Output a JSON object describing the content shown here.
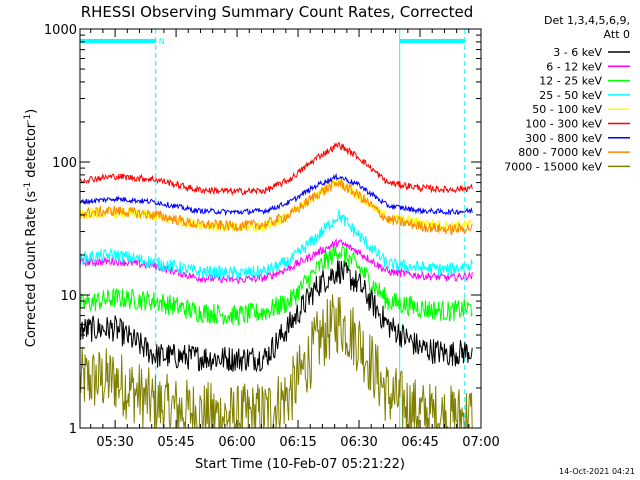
{
  "chart_data": {
    "type": "line",
    "title": "RHESSI Observing Summary Count Rates, Corrected",
    "xlabel": "Start Time (10-Feb-07 05:21:22)",
    "ylabel": "Corrected Count Rate (s",
    "ylabel_sup1": "-1",
    "ylabel_mid": " detector",
    "ylabel_sup2": "-1",
    "ylabel_end": ")",
    "yscale": "log",
    "ylim": [
      1,
      1000
    ],
    "xlim": [
      "05:21:22",
      "07:00"
    ],
    "x_ticks": [
      "05:30",
      "05:45",
      "06:00",
      "06:15",
      "06:30",
      "06:45",
      "07:00"
    ],
    "y_ticks": [
      "1",
      "10",
      "100",
      "1000"
    ],
    "legend_header": [
      "Det 1,3,4,5,6,9,",
      "Att 0"
    ],
    "legend_position": "right",
    "timestamp": "14-Oct-2021 04:21",
    "night_marker": "N",
    "night_intervals": [
      [
        "05:21:22",
        "05:40"
      ],
      [
        "06:40",
        "06:56"
      ]
    ],
    "series": [
      {
        "name": "3 - 6 keV",
        "color": "#000000",
        "values": [
          5.5,
          5.6,
          3.5,
          3.4,
          3.3,
          3.4,
          6,
          12,
          15.5,
          12,
          6,
          4,
          3.6,
          3.8
        ]
      },
      {
        "name": "6 - 12 keV",
        "color": "#ff00ff",
        "values": [
          17.5,
          18,
          16.5,
          13.5,
          13,
          13.5,
          16,
          21,
          25,
          21,
          15,
          14,
          13.5,
          14
        ]
      },
      {
        "name": "12 - 25 keV",
        "color": "#00ff00",
        "values": [
          8.5,
          9.5,
          9,
          7.5,
          7,
          7.5,
          9,
          16,
          22,
          16,
          9,
          8,
          7.5,
          8
        ]
      },
      {
        "name": "25 - 50 keV",
        "color": "#00ffff",
        "values": [
          19,
          20,
          17.5,
          15,
          14.5,
          15,
          18,
          28,
          40,
          28,
          17,
          16,
          15.5,
          17
        ]
      },
      {
        "name": "50 - 100 keV",
        "color": "#ffff00",
        "values": [
          40,
          42,
          39,
          34,
          32,
          33,
          40,
          58,
          72,
          56,
          38,
          35,
          33,
          34
        ]
      },
      {
        "name": "100 - 300 keV",
        "color": "#ff0000",
        "values": [
          73,
          78,
          74,
          62,
          60,
          61,
          74,
          110,
          135,
          108,
          70,
          64,
          62,
          64
        ]
      },
      {
        "name": "300 - 800 keV",
        "color": "#0000ff",
        "values": [
          50,
          53,
          50,
          43,
          42,
          43,
          50,
          68,
          78,
          67,
          47,
          43,
          42,
          43
        ]
      },
      {
        "name": "800 - 7000 keV",
        "color": "#ff8800",
        "values": [
          41,
          43,
          40,
          34,
          33,
          34,
          40,
          58,
          70,
          56,
          37,
          33,
          31,
          32
        ]
      },
      {
        "name": "7000 - 15000 keV",
        "color": "#808000",
        "values": [
          2.3,
          2.3,
          1.5,
          1.3,
          1.2,
          1.3,
          1.8,
          4.5,
          6.5,
          4.5,
          1.8,
          1.3,
          1.2,
          1.25
        ]
      }
    ],
    "x_samples": [
      "05:21:22",
      "05:30",
      "05:40",
      "05:50",
      "06:00",
      "06:07",
      "06:13",
      "06:20",
      "06:25",
      "06:30",
      "06:37",
      "06:45",
      "06:52",
      "06:58"
    ]
  }
}
